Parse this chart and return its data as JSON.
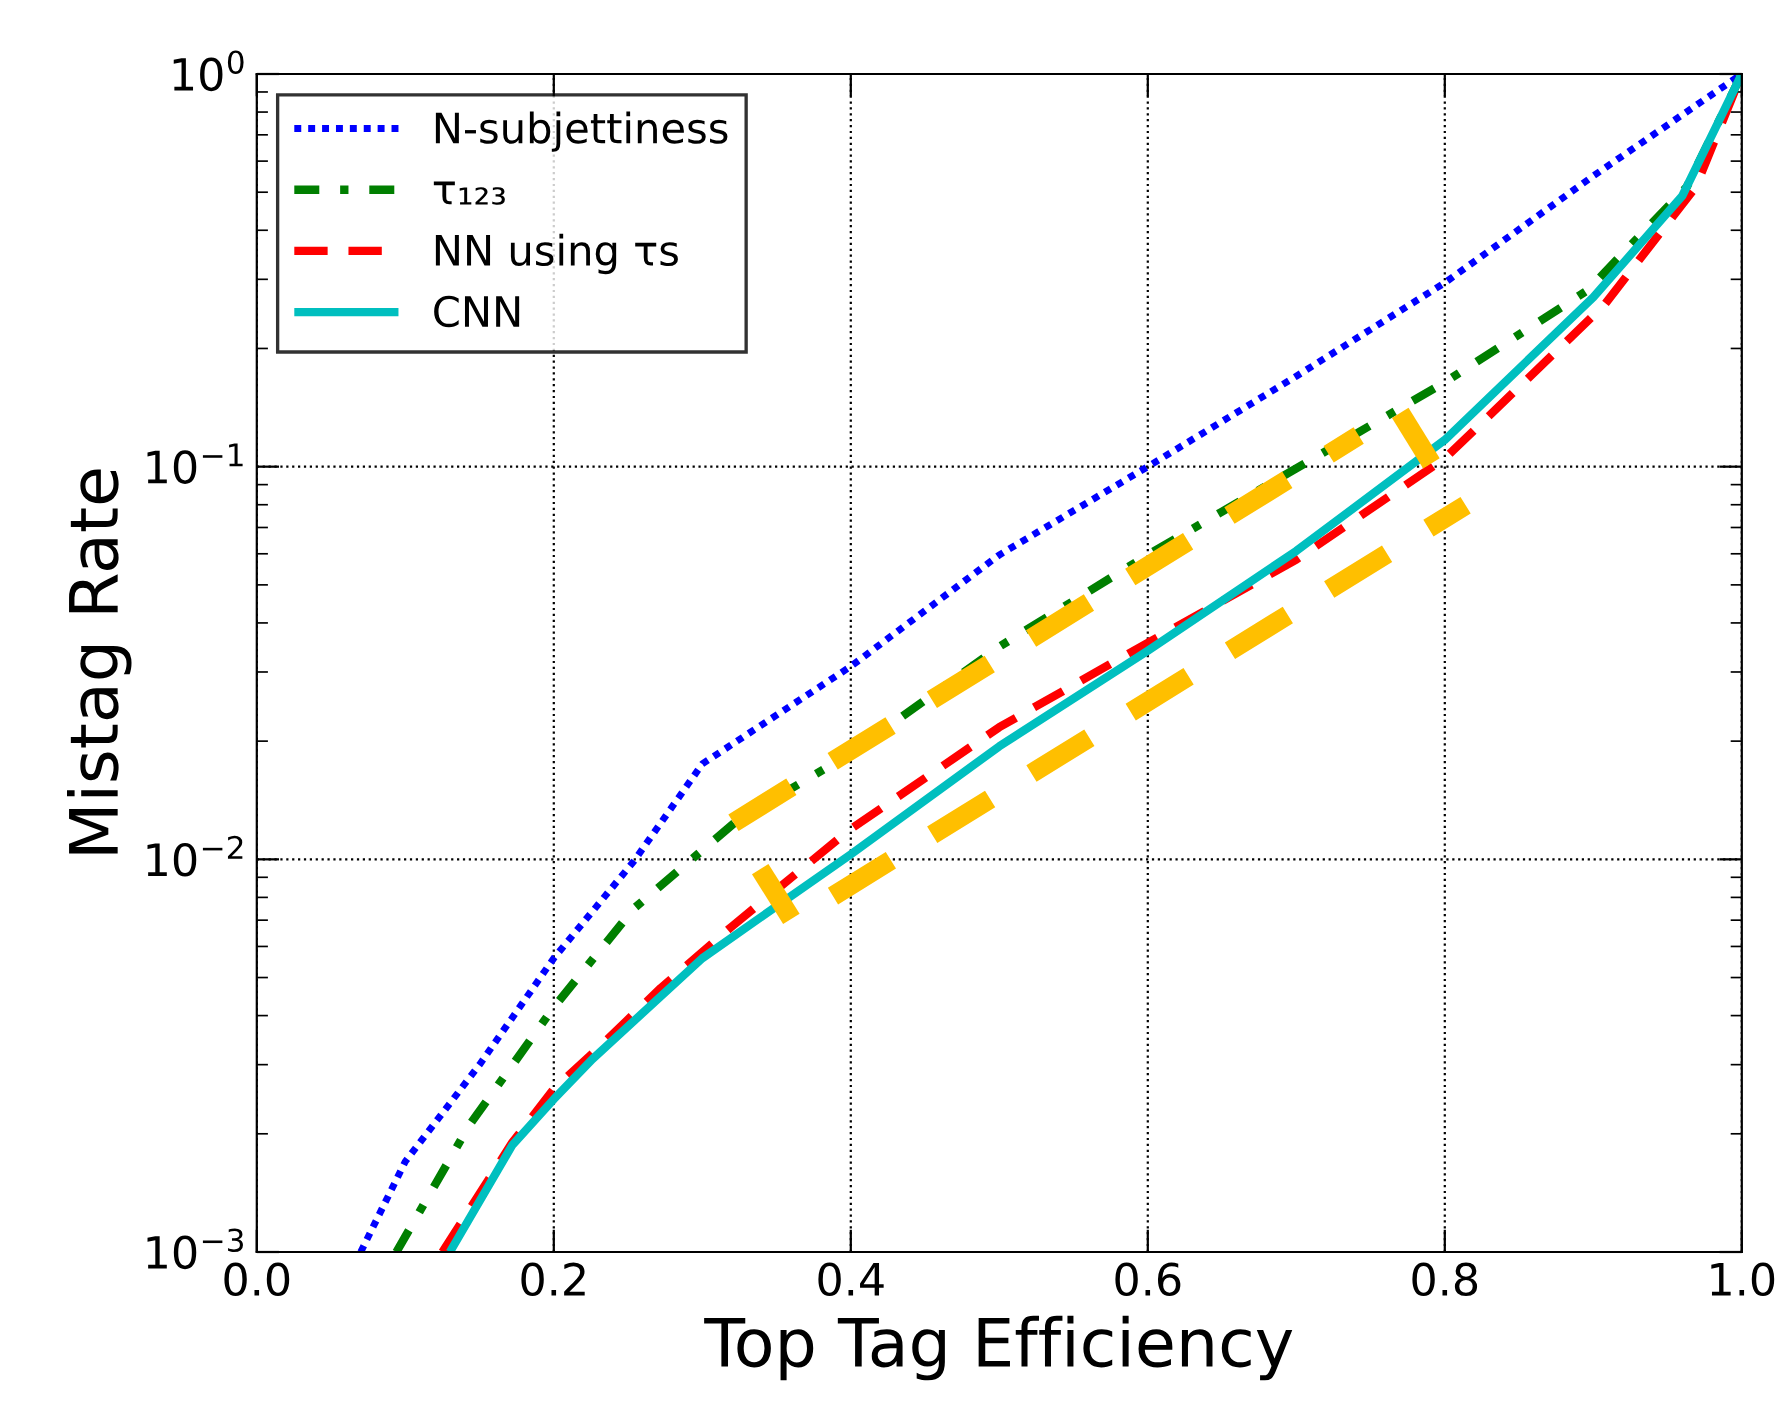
{
  "chart_data": {
    "type": "line",
    "xlabel": "Top Tag Efficiency",
    "ylabel": "Mistag Rate",
    "log": "y",
    "grid": true,
    "legend": "top left",
    "xlim": [
      0.0,
      1.0
    ],
    "xticks": [
      {
        "value": 0.0,
        "label": "0.0"
      },
      {
        "value": 0.2,
        "label": "0.2"
      },
      {
        "value": 0.4,
        "label": "0.4"
      },
      {
        "value": 0.6,
        "label": "0.6"
      },
      {
        "value": 0.8,
        "label": "0.8"
      },
      {
        "value": 1.0,
        "label": "1.0"
      }
    ],
    "ylim": [
      0.001,
      1
    ],
    "yticks": [
      {
        "value": 0.001,
        "label": "10$^{−3}$"
      },
      {
        "value": 0.01,
        "label": "10$^{−2}$"
      },
      {
        "value": 0.1,
        "label": "10$^{−1}$"
      },
      {
        "value": 1,
        "label": "10$^{0}$"
      }
    ],
    "series": [
      {
        "name": "N-subjettiness",
        "color": "#0000ff",
        "line_style": "dotted",
        "x": [
          0.07,
          0.1,
          0.15,
          0.2,
          0.254,
          0.3,
          0.4,
          0.5,
          0.6,
          0.7,
          0.8,
          0.9,
          1.0
        ],
        "values": [
          0.001,
          0.0017,
          0.003,
          0.0056,
          0.0099,
          0.0175,
          0.031,
          0.0596,
          0.1,
          0.17,
          0.294,
          0.55,
          1.0
        ]
      },
      {
        "name": "τ₁₂₃",
        "color": "#007f00",
        "line_style": "dashdot",
        "x": [
          0.094,
          0.143,
          0.2,
          0.254,
          0.324,
          0.4,
          0.5,
          0.6,
          0.7,
          0.8,
          0.896,
          0.963,
          1.0
        ],
        "values": [
          0.001,
          0.0021,
          0.0042,
          0.0075,
          0.0126,
          0.0186,
          0.0348,
          0.0596,
          0.099,
          0.164,
          0.281,
          0.516,
          1.0
        ]
      },
      {
        "name": "NN using τs",
        "color": "#ff0000",
        "line_style": "dashed",
        "x": [
          0.125,
          0.172,
          0.2,
          0.226,
          0.272,
          0.319,
          0.398,
          0.5,
          0.6,
          0.7,
          0.8,
          0.907,
          0.969,
          1.0
        ],
        "values": [
          0.001,
          0.0019,
          0.0026,
          0.0032,
          0.0047,
          0.0067,
          0.0118,
          0.0217,
          0.0356,
          0.058,
          0.105,
          0.257,
          0.516,
          1.0
        ]
      },
      {
        "name": "CNN",
        "color": "#00bfbf",
        "line_style": "solid",
        "x": [
          0.13,
          0.172,
          0.2,
          0.226,
          0.3,
          0.4,
          0.5,
          0.6,
          0.7,
          0.8,
          0.9,
          0.96,
          1.0
        ],
        "values": [
          0.001,
          0.00187,
          0.00245,
          0.0031,
          0.0056,
          0.0103,
          0.0194,
          0.034,
          0.061,
          0.117,
          0.27,
          0.49,
          1.0
        ]
      },
      {
        "color": "#ffbf00",
        "line_style": "dashed",
        "x": [
          0.321,
          0.742
        ],
        "values": [
          0.0124,
          0.12
        ]
      },
      {
        "color": "#ffbf00",
        "line_style": "dashed",
        "x": [
          0.388,
          0.814
        ],
        "values": [
          0.00806,
          0.0798
        ]
      },
      {
        "color": "#ffbf00",
        "line_style": "solid",
        "x": [
          0.339,
          0.36
        ],
        "values": [
          0.00944,
          0.00705
        ]
      },
      {
        "color": "#ffbf00",
        "line_style": "solid",
        "x": [
          0.77,
          0.791
        ],
        "values": [
          0.137,
          0.102
        ]
      }
    ]
  }
}
